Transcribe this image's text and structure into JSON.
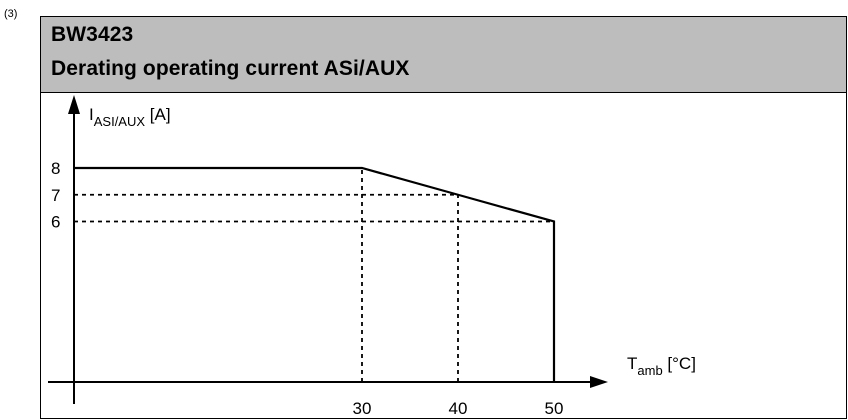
{
  "footnote": "(3)",
  "header": {
    "title": "BW3423",
    "subtitle": "Derating operating current ASi/AUX"
  },
  "chart_data": {
    "type": "line",
    "title": "BW3423",
    "subtitle": "Derating operating current ASi/AUX",
    "xlabel": {
      "main": "T",
      "sub": "amb",
      "unit": "[°C]"
    },
    "ylabel": {
      "main": "I",
      "sub": "ASI/AUX",
      "unit": "[A]"
    },
    "x_ticks": [
      30,
      40,
      50
    ],
    "y_ticks": [
      6,
      7,
      8
    ],
    "xlim": [
      0,
      57
    ],
    "ylim": [
      0,
      9.3
    ],
    "series": [
      {
        "x": [
          0,
          30,
          40,
          50,
          50
        ],
        "y": [
          8,
          8,
          7,
          6,
          0
        ]
      }
    ],
    "reference_lines": [
      {
        "from": [
          0,
          7
        ],
        "to": [
          40,
          7
        ]
      },
      {
        "from": [
          0,
          6
        ],
        "to": [
          50,
          6
        ]
      },
      {
        "from": [
          30,
          0
        ],
        "to": [
          30,
          8
        ]
      },
      {
        "from": [
          40,
          0
        ],
        "to": [
          40,
          7
        ]
      }
    ],
    "grid": false,
    "legend": "none",
    "colors": {
      "line": "#000000",
      "header_bg": "#bdbdbd"
    }
  }
}
